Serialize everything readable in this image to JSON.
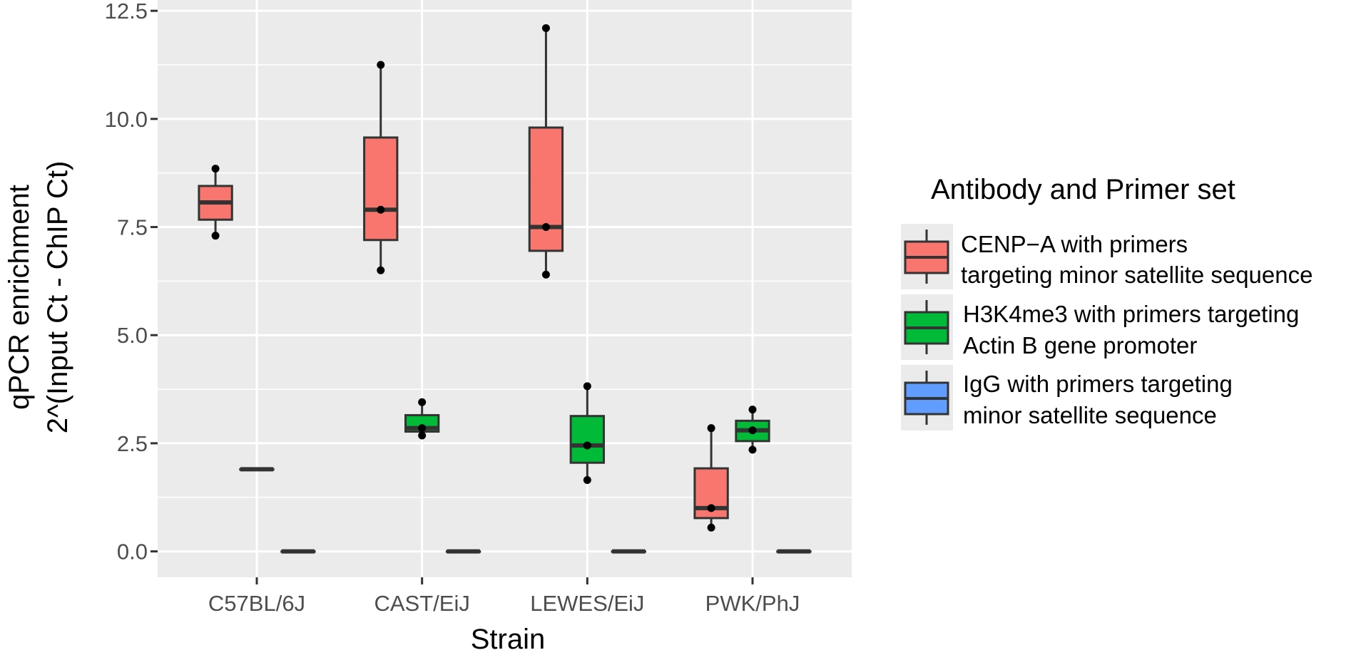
{
  "chart_data": {
    "type": "boxplot",
    "xlabel": "Strain",
    "ylabel_lines": [
      "qPCR enrichment",
      "2^(Input Ct - ChIP Ct)"
    ],
    "ylim": [
      -0.6,
      12.75
    ],
    "yticks": [
      0,
      2.5,
      5,
      7.5,
      10,
      12.5
    ],
    "ytick_labels": [
      "0.0",
      "2.5",
      "5.0",
      "7.5",
      "10.0",
      "12.5"
    ],
    "categories": [
      "C57BL/6J",
      "CAST/EiJ",
      "LEWES/EiJ",
      "PWK/PhJ"
    ],
    "grid": true,
    "legend": {
      "title": "Antibody and Primer set",
      "placement": "right",
      "entries": [
        {
          "lines": [
            "CENP−A with primers",
            "targeting minor satellite sequence"
          ],
          "color": "#F8766D"
        },
        {
          "lines": [
            "H3K4me3 with primers targeting",
            "Actin B gene promoter"
          ],
          "color": "#00BA38"
        },
        {
          "lines": [
            "IgG with primers targeting",
            "minor satellite sequence"
          ],
          "color": "#619CFF"
        }
      ]
    },
    "series": [
      {
        "color": "#F8766D",
        "boxes": [
          {
            "category": "C57BL/6J",
            "min": 7.3,
            "q1": 7.67,
            "median": 8.07,
            "q3": 8.45,
            "max": 8.85,
            "points": [
              7.3,
              8.85
            ]
          },
          {
            "category": "CAST/EiJ",
            "min": 6.5,
            "q1": 7.2,
            "median": 7.9,
            "q3": 9.57,
            "max": 11.25,
            "points": [
              6.5,
              7.9,
              11.25
            ]
          },
          {
            "category": "LEWES/EiJ",
            "min": 6.4,
            "q1": 6.95,
            "median": 7.5,
            "q3": 9.8,
            "max": 12.1,
            "points": [
              6.4,
              7.5,
              12.1
            ]
          },
          {
            "category": "PWK/PhJ",
            "min": 0.55,
            "q1": 0.77,
            "median": 1.0,
            "q3": 1.92,
            "max": 2.85,
            "points": [
              0.55,
              1.0,
              2.85
            ]
          }
        ]
      },
      {
        "color": "#00BA38",
        "boxes": [
          {
            "category": "C57BL/6J",
            "min": 1.9,
            "q1": 1.9,
            "median": 1.9,
            "q3": 1.9,
            "max": 1.9,
            "points": []
          },
          {
            "category": "CAST/EiJ",
            "min": 2.68,
            "q1": 2.77,
            "median": 2.85,
            "q3": 3.15,
            "max": 3.45,
            "points": [
              2.68,
              2.85,
              3.45
            ]
          },
          {
            "category": "LEWES/EiJ",
            "min": 1.65,
            "q1": 2.05,
            "median": 2.45,
            "q3": 3.13,
            "max": 3.82,
            "points": [
              1.65,
              2.45,
              3.82
            ]
          },
          {
            "category": "PWK/PhJ",
            "min": 2.35,
            "q1": 2.55,
            "median": 2.8,
            "q3": 3.02,
            "max": 3.28,
            "points": [
              2.35,
              2.8,
              3.28
            ]
          }
        ]
      },
      {
        "color": "#619CFF",
        "boxes": [
          {
            "category": "C57BL/6J",
            "min": 0,
            "q1": 0,
            "median": 0,
            "q3": 0,
            "max": 0,
            "points": []
          },
          {
            "category": "CAST/EiJ",
            "min": 0,
            "q1": 0,
            "median": 0,
            "q3": 0,
            "max": 0,
            "points": []
          },
          {
            "category": "LEWES/EiJ",
            "min": 0,
            "q1": 0,
            "median": 0,
            "q3": 0,
            "max": 0,
            "points": []
          },
          {
            "category": "PWK/PhJ",
            "min": 0,
            "q1": 0,
            "median": 0,
            "q3": 0,
            "max": 0,
            "points": []
          }
        ]
      }
    ]
  }
}
